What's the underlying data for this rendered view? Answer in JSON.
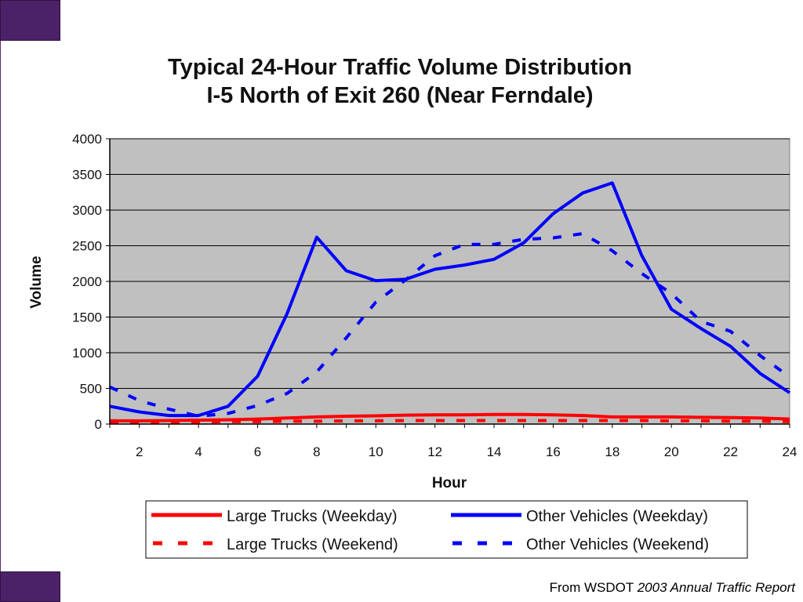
{
  "source": {
    "prefix": "From WSDOT",
    "italic": "2003 Annual Traffic Report"
  },
  "chart_data": {
    "type": "line",
    "title_lines": [
      "Typical 24-Hour Traffic Volume Distribution",
      "I-5 North of Exit 260 (Near Ferndale)"
    ],
    "xlabel": "Hour",
    "ylabel": "Volume",
    "xlim": [
      1,
      24
    ],
    "ylim": [
      0,
      4000
    ],
    "x_ticks": [
      2,
      4,
      6,
      8,
      10,
      12,
      14,
      16,
      18,
      20,
      22,
      24
    ],
    "y_ticks": [
      0,
      500,
      1000,
      1500,
      2000,
      2500,
      3000,
      3500,
      4000
    ],
    "grid": true,
    "plot_background": "#c0c0c0",
    "legend_position": "bottom",
    "x": [
      1,
      2,
      3,
      4,
      5,
      6,
      7,
      8,
      9,
      10,
      11,
      12,
      13,
      14,
      15,
      16,
      17,
      18,
      19,
      20,
      21,
      22,
      23,
      24
    ],
    "series": [
      {
        "name": "Large Trucks (Weekday)",
        "color": "#ff0000",
        "dash": false,
        "values": [
          45,
          45,
          50,
          55,
          60,
          70,
          85,
          100,
          110,
          115,
          125,
          130,
          130,
          135,
          135,
          130,
          120,
          100,
          100,
          100,
          95,
          90,
          85,
          70
        ]
      },
      {
        "name": "Other Vehicles (Weekday)",
        "color": "#0000ff",
        "dash": false,
        "values": [
          250,
          170,
          120,
          120,
          250,
          670,
          1550,
          2620,
          2150,
          2010,
          2030,
          2170,
          2230,
          2310,
          2540,
          2950,
          3240,
          3380,
          2360,
          1610,
          1340,
          1090,
          710,
          440
        ]
      },
      {
        "name": "Large Trucks (Weekend)",
        "color": "#ff0000",
        "dash": true,
        "values": [
          30,
          25,
          25,
          30,
          35,
          35,
          40,
          40,
          45,
          45,
          50,
          50,
          50,
          50,
          50,
          50,
          50,
          50,
          50,
          45,
          45,
          40,
          40,
          35
        ]
      },
      {
        "name": "Other Vehicles (Weekend)",
        "color": "#0000ff",
        "dash": true,
        "values": [
          520,
          330,
          210,
          110,
          150,
          260,
          430,
          730,
          1210,
          1710,
          2020,
          2360,
          2520,
          2520,
          2590,
          2610,
          2670,
          2430,
          2110,
          1830,
          1440,
          1300,
          960,
          660
        ]
      }
    ]
  }
}
